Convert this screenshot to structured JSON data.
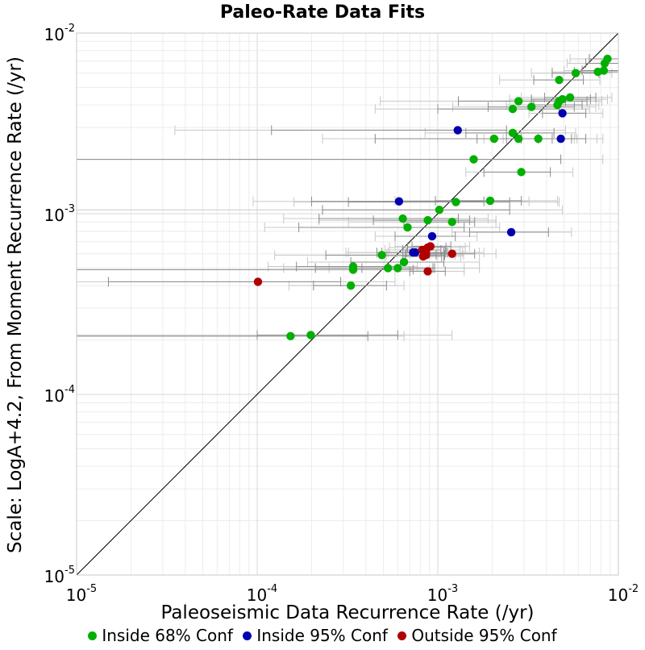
{
  "chart_data": {
    "type": "scatter",
    "title": "Paleo-Rate Data Fits",
    "xlabel": "Paleoseismic Data Recurrence Rate (/yr)",
    "ylabel": "Scale: LogA+4.2, From Moment Recurrence Rate (/yr)",
    "xscale": "log",
    "yscale": "log",
    "xlim": [
      1e-05,
      0.01
    ],
    "ylim": [
      1e-05,
      0.01
    ],
    "x_tick_labels": [
      {
        "base": "10",
        "exp": "-5"
      },
      {
        "base": "10",
        "exp": "-4"
      },
      {
        "base": "10",
        "exp": "-3"
      },
      {
        "base": "10",
        "exp": "-2"
      }
    ],
    "y_tick_labels": [
      {
        "base": "10",
        "exp": "-5"
      },
      {
        "base": "10",
        "exp": "-4"
      },
      {
        "base": "10",
        "exp": "-3"
      },
      {
        "base": "10",
        "exp": "-2"
      }
    ],
    "grid": true,
    "reference_line": "y = x",
    "legend_position": "bottom",
    "error_bars": "horizontal; 68% (dark gray) and 95% (light gray) intervals on x",
    "series": [
      {
        "name": "Inside 68% Conf",
        "color": "#00b000",
        "points": [
          {
            "x": 0.0087,
            "y": 0.0072,
            "x68": [
              0.0069,
              0.01
            ],
            "x95": [
              0.0054,
              0.01
            ]
          },
          {
            "x": 0.0084,
            "y": 0.0068,
            "x68": [
              0.0066,
              0.01
            ],
            "x95": [
              0.0052,
              0.01
            ]
          },
          {
            "x": 0.0077,
            "y": 0.0061,
            "x68": [
              0.0057,
              0.01
            ],
            "x95": [
              0.0043,
              0.01
            ]
          },
          {
            "x": 0.0083,
            "y": 0.0062,
            "x68": [
              0.0063,
              0.01
            ],
            "x95": [
              0.005,
              0.01
            ]
          },
          {
            "x": 0.0058,
            "y": 0.006,
            "x68": [
              0.0043,
              0.0078
            ],
            "x95": [
              0.0033,
              0.0092
            ]
          },
          {
            "x": 0.0047,
            "y": 0.0055,
            "x68": [
              0.0034,
              0.0064
            ],
            "x95": [
              0.0022,
              0.0079
            ]
          },
          {
            "x": 0.0054,
            "y": 0.0044,
            "x68": [
              0.0039,
              0.0075
            ],
            "x95": [
              0.0029,
              0.0092
            ]
          },
          {
            "x": 0.0049,
            "y": 0.0043,
            "x68": [
              0.0033,
              0.007
            ],
            "x95": [
              0.0025,
              0.0087
            ]
          },
          {
            "x": 0.0047,
            "y": 0.0042,
            "x68": [
              0.0033,
              0.0067
            ],
            "x95": [
              0.0025,
              0.0081
            ]
          },
          {
            "x": 0.0046,
            "y": 0.004,
            "x68": [
              0.0034,
              0.0063
            ],
            "x95": [
              0.0024,
              0.0078
            ]
          },
          {
            "x": 0.0028,
            "y": 0.0042,
            "x68": [
              0.0013,
              0.0051
            ],
            "x95": [
              0.00048,
              0.0081
            ]
          },
          {
            "x": 0.0026,
            "y": 0.0038,
            "x68": [
              0.001,
              0.0047
            ],
            "x95": [
              0.00045,
              0.0069
            ]
          },
          {
            "x": 0.0033,
            "y": 0.0039,
            "x68": [
              0.0019,
              0.0057
            ],
            "x95": [
              0.00121,
              0.0075
            ]
          },
          {
            "x": 0.0026,
            "y": 0.0028,
            "x68": [
              0.00143,
              0.0044
            ],
            "x95": [
              0.00085,
              0.0058
            ]
          },
          {
            "x": 0.0028,
            "y": 0.0026,
            "x68": [
              0.00165,
              0.0043
            ],
            "x95": [
              0.001,
              0.0059
            ]
          },
          {
            "x": 0.00205,
            "y": 0.0026,
            "x68": [
              0.00045,
              0.0036
            ],
            "x95": [
              0.00023,
              0.0057
            ]
          },
          {
            "x": 0.0036,
            "y": 0.0026,
            "x68": [
              0.0024,
              0.0055
            ],
            "x95": [
              0.0018,
              0.0082
            ]
          },
          {
            "x": 0.00158,
            "y": 0.002,
            "x68": [
              1e-05,
              0.0048
            ],
            "x95": [
              1e-05,
              0.0082
            ]
          },
          {
            "x": 0.0029,
            "y": 0.0017,
            "x68": [
              0.0018,
              0.0042
            ],
            "x95": [
              0.00143,
              0.0056
            ]
          },
          {
            "x": 0.00195,
            "y": 0.00118,
            "x68": [
              0.00097,
              0.0029
            ],
            "x95": [
              0.00058,
              0.0046
            ]
          },
          {
            "x": 0.00126,
            "y": 0.00116,
            "x68": [
              0.00032,
              0.0025
            ],
            "x95": [
              0.00016,
              0.0047
            ]
          },
          {
            "x": 0.00102,
            "y": 0.00105,
            "x68": [
              0.00023,
              0.0025
            ],
            "x95": [
              1e-05,
              0.0049
            ]
          },
          {
            "x": 0.00064,
            "y": 0.00094,
            "x68": [
              0.00022,
              0.0013
            ],
            "x95": [
              0.00014,
              0.0019
            ]
          },
          {
            "x": 0.00088,
            "y": 0.00092,
            "x68": [
              0.00044,
              0.0015
            ],
            "x95": [
              0.00022,
              0.0021
            ]
          },
          {
            "x": 0.0012,
            "y": 0.0009,
            "x68": [
              0.00065,
              0.0016
            ],
            "x95": [
              0.00032,
              0.0021
            ]
          },
          {
            "x": 0.00068,
            "y": 0.00084,
            "x68": [
              0.00017,
              0.0014
            ],
            "x95": [
              0.00011,
              0.0022
            ]
          },
          {
            "x": 0.00049,
            "y": 0.00059,
            "x68": [
              0.00024,
              0.00098
            ],
            "x95": [
              0.000125,
              0.00125
            ]
          },
          {
            "x": 0.00065,
            "y": 0.00054,
            "x68": [
              0.00033,
              0.00108
            ],
            "x95": [
              0.00019,
              0.0017
            ]
          },
          {
            "x": 0.00053,
            "y": 0.0005,
            "x68": [
              0.00021,
              0.00096
            ],
            "x95": [
              0.00014,
              0.0017
            ]
          },
          {
            "x": 0.0006,
            "y": 0.0005,
            "x68": [
              0.00038,
              0.00094
            ],
            "x95": [
              0.00025,
              0.0014
            ]
          },
          {
            "x": 0.00034,
            "y": 0.00051,
            "x68": [
              0.000165,
              0.00062
            ],
            "x95": [
              0.000115,
              0.00077
            ]
          },
          {
            "x": 0.00034,
            "y": 0.00049,
            "x68": [
              1e-05,
              0.00073
            ],
            "x95": [
              1e-05,
              0.0009
            ]
          },
          {
            "x": 0.00033,
            "y": 0.0004,
            "x68": [
              0.000205,
              0.00052
            ],
            "x95": [
              0.00015,
              0.00065
            ]
          },
          {
            "x": 0.000153,
            "y": 0.00021,
            "x68": [
              1e-05,
              0.00041
            ],
            "x95": [
              1e-05,
              0.00065
            ]
          },
          {
            "x": 0.000198,
            "y": 0.000213,
            "x68": [
              0.0001,
              0.0006
            ],
            "x95": [
              1e-05,
              0.0012
            ]
          }
        ]
      },
      {
        "name": "Inside 95% Conf",
        "color": "#0000b0",
        "points": [
          {
            "x": 0.0049,
            "y": 0.0036,
            "x68": [
              0.0038,
              0.0066
            ],
            "x95": [
              0.0032,
              0.0082
            ]
          },
          {
            "x": 0.00129,
            "y": 0.0029,
            "x68": [
              0.00012,
              0.0024
            ],
            "x95": [
              3.5e-05,
              0.0051
            ]
          },
          {
            "x": 0.0048,
            "y": 0.0026,
            "x68": [
              0.0029,
              0.0066
            ],
            "x95": [
              0.0023,
              0.0076
            ]
          },
          {
            "x": 0.00061,
            "y": 0.00117,
            "x68": [
              0.0002,
              0.0018
            ],
            "x95": [
              9.5e-05,
              0.0032
            ]
          },
          {
            "x": 0.00255,
            "y": 0.00079,
            "x68": [
              0.0015,
              0.0041
            ],
            "x95": [
              0.0012,
              0.0055
            ]
          },
          {
            "x": 0.00093,
            "y": 0.00075,
            "x68": [
              0.00058,
              0.00125
            ],
            "x95": [
              0.00045,
              0.00165
            ]
          },
          {
            "x": 0.00073,
            "y": 0.00061,
            "x68": [
              0.00046,
              0.0011
            ],
            "x95": [
              0.00031,
              0.0017
            ]
          },
          {
            "x": 0.00075,
            "y": 0.00061,
            "x68": [
              0.00049,
              0.00113
            ],
            "x95": [
              0.00032,
              0.0018
            ]
          }
        ]
      },
      {
        "name": "Outside 95% Conf",
        "color": "#b00000",
        "points": [
          {
            "x": 0.00091,
            "y": 0.00066,
            "x68": [
              0.00072,
              0.00118
            ],
            "x95": [
              0.00058,
              0.0015
            ]
          },
          {
            "x": 0.00088,
            "y": 0.00065,
            "x68": [
              0.00068,
              0.00111
            ],
            "x95": [
              0.00054,
              0.00142
            ]
          },
          {
            "x": 0.00082,
            "y": 0.00063,
            "x68": [
              0.00064,
              0.00104
            ],
            "x95": [
              0.00051,
              0.00133
            ]
          },
          {
            "x": 0.00086,
            "y": 0.00061,
            "x68": [
              0.00067,
              0.00108
            ],
            "x95": [
              0.00053,
              0.00137
            ]
          },
          {
            "x": 0.00083,
            "y": 0.00058,
            "x68": [
              0.00064,
              0.00105
            ],
            "x95": [
              0.00051,
              0.00134
            ]
          },
          {
            "x": 0.00086,
            "y": 0.00059,
            "x68": [
              0.00066,
              0.00109
            ],
            "x95": [
              0.00052,
              0.00139
            ]
          },
          {
            "x": 0.0012,
            "y": 0.0006,
            "x68": [
              0.0009,
              0.0016
            ],
            "x95": [
              0.0007,
              0.0021
            ]
          },
          {
            "x": 0.00088,
            "y": 0.00048,
            "x68": [
              0.0007,
              0.0011
            ],
            "x95": [
              0.00058,
              0.0014
            ]
          },
          {
            "x": 0.000101,
            "y": 0.00042,
            "x68": [
              1.5e-05,
              0.00029
            ],
            "x95": [
              1e-05,
              0.00058
            ]
          }
        ]
      }
    ]
  }
}
